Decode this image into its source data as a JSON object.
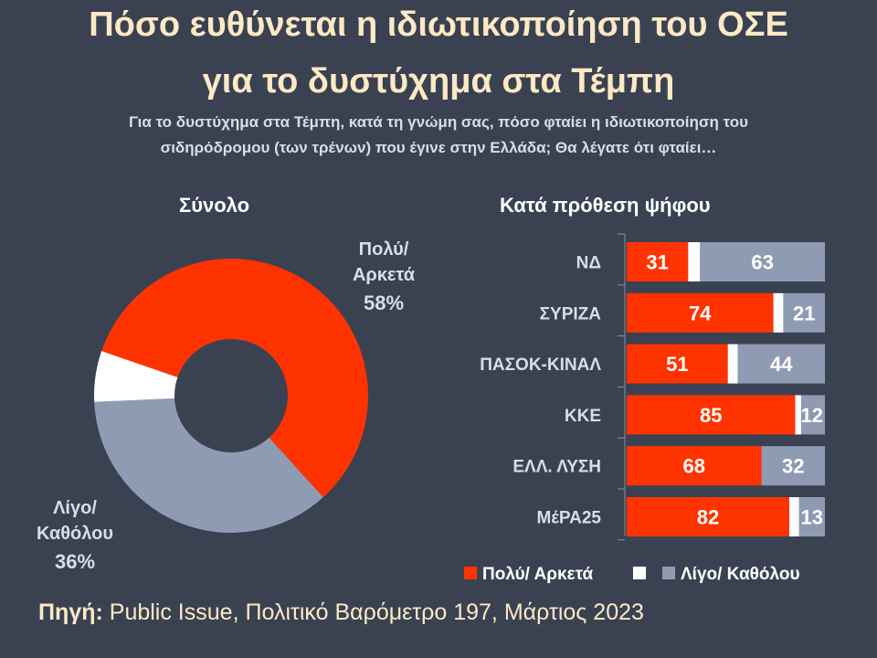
{
  "title_line1": "Πόσο ευθύνεται η ιδιωτικοποίηση του ΟΣΕ",
  "title_line2": "για το δυστύχημα στα Τέμπη",
  "subtitle_line1": "Για το δυστύχημα στα Τέμπη, κατά τη γνώμη σας, πόσο φταίει η ιδιωτικοποίηση του",
  "subtitle_line2": "σιδηρόδρομου (των τρένων) που έγινε στην Ελλάδα; Θα λέγατε ότι φταίει…",
  "source_label": "Πηγή:",
  "source_text": " Public Issue, Πολιτικό Βαρόμετρο 197, Μάρτιος 2023",
  "colors": {
    "background": "#3a4252",
    "red": "#ff3300",
    "white": "#ffffff",
    "grey": "#8f9bb3",
    "title": "#fde9c4"
  },
  "chart_data": [
    {
      "type": "pie",
      "donut": true,
      "title": "Σύνολο",
      "slices": [
        {
          "label_line1": "Πολύ/",
          "label_line2": "Αρκετά",
          "value_label": "58%",
          "value": 58,
          "color": "#ff3300"
        },
        {
          "label_line1": "Λίγο/",
          "label_line2": "Καθόλου",
          "value_label": "36%",
          "value": 36,
          "color": "#8f9bb3"
        },
        {
          "label_line1": "",
          "label_line2": "",
          "value_label": "",
          "value": 6,
          "color": "#ffffff"
        }
      ]
    },
    {
      "type": "bar",
      "orientation": "horizontal",
      "stacked": true,
      "title": "Κατά πρόθεση ψήφου",
      "categories": [
        "ΝΔ",
        "ΣΥΡΙΖΑ",
        "ΠΑΣΟΚ-ΚΙΝΑΛ",
        "ΚΚΕ",
        "ΕΛΛ. ΛΥΣΗ",
        "ΜέΡΑ25"
      ],
      "series": [
        {
          "name": "Πολύ/ Αρκετά",
          "color": "#ff3300",
          "values": [
            31,
            74,
            51,
            85,
            68,
            82
          ]
        },
        {
          "name": "",
          "color": "#ffffff",
          "values": [
            6,
            5,
            5,
            3,
            0,
            5
          ]
        },
        {
          "name": "Λίγο/ Καθόλου",
          "color": "#8f9bb3",
          "values": [
            63,
            21,
            44,
            12,
            32,
            13
          ]
        }
      ],
      "xlim": [
        0,
        100
      ],
      "legend": "bottom"
    }
  ]
}
